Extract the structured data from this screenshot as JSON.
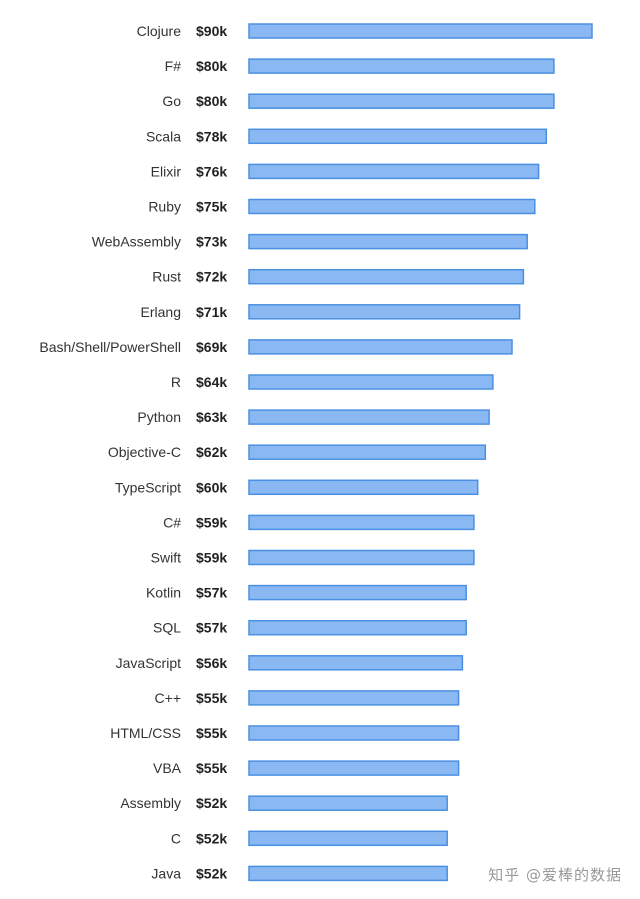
{
  "chart_data": {
    "type": "bar",
    "orientation": "horizontal",
    "categories": [
      "Clojure",
      "F#",
      "Go",
      "Scala",
      "Elixir",
      "Ruby",
      "WebAssembly",
      "Rust",
      "Erlang",
      "Bash/Shell/PowerShell",
      "R",
      "Python",
      "Objective-C",
      "TypeScript",
      "C#",
      "Swift",
      "Kotlin",
      "SQL",
      "JavaScript",
      "C++",
      "HTML/CSS",
      "VBA",
      "Assembly",
      "C",
      "Java"
    ],
    "values": [
      90,
      80,
      80,
      78,
      76,
      75,
      73,
      72,
      71,
      69,
      64,
      63,
      62,
      60,
      59,
      59,
      57,
      57,
      56,
      55,
      55,
      55,
      52,
      52,
      52
    ],
    "value_labels": [
      "$90k",
      "$80k",
      "$80k",
      "$78k",
      "$76k",
      "$75k",
      "$73k",
      "$72k",
      "$71k",
      "$69k",
      "$64k",
      "$63k",
      "$62k",
      "$60k",
      "$59k",
      "$59k",
      "$57k",
      "$57k",
      "$56k",
      "$55k",
      "$55k",
      "$55k",
      "$52k",
      "$52k",
      "$52k"
    ],
    "title": "",
    "xlabel": "",
    "ylabel": "",
    "xlim": [
      0,
      90
    ],
    "grid": false,
    "legend": "none",
    "bar_fill": "#8ab8f2",
    "bar_stroke": "#4a90e2"
  },
  "watermark": "知乎 @爱棒的数据"
}
